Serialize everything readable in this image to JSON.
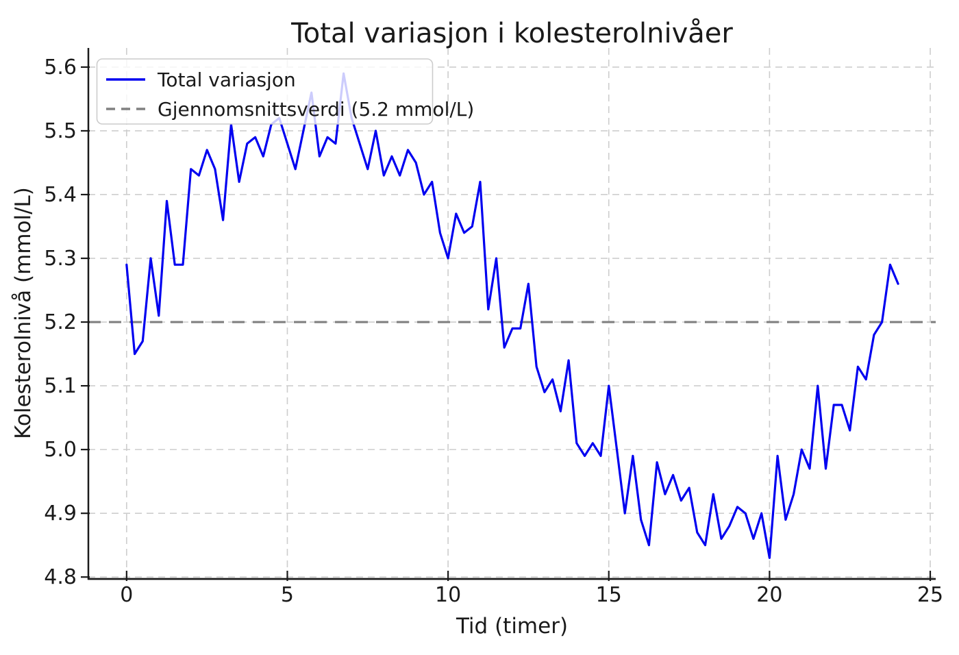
{
  "chart_data": {
    "type": "line",
    "title": "Total variasjon i kolesterolnivåer",
    "xlabel": "Tid (timer)",
    "ylabel": "Kolesterolnivå (mmol/L)",
    "xlim": [
      -1.19,
      25.17
    ],
    "ylim": [
      4.797,
      5.63
    ],
    "xticks": [
      0,
      5,
      10,
      15,
      20,
      25
    ],
    "xtick_labels": [
      "0",
      "5",
      "10",
      "15",
      "20",
      "25"
    ],
    "yticks": [
      4.8,
      4.9,
      5.0,
      5.1,
      5.2,
      5.3,
      5.4,
      5.5,
      5.6
    ],
    "ytick_labels": [
      "4.8",
      "4.9",
      "5.0",
      "5.1",
      "5.2",
      "5.3",
      "5.4",
      "5.5",
      "5.6"
    ],
    "grid": true,
    "x": {
      "start": 0,
      "step": 0.25,
      "count": 97,
      "unit": "timer"
    },
    "series": [
      {
        "name": "Total variasjon",
        "color": "#0000f0",
        "linestyle": "solid",
        "linewidth": 3.2,
        "values": [
          5.29,
          5.15,
          5.17,
          5.3,
          5.21,
          5.39,
          5.29,
          5.29,
          5.44,
          5.43,
          5.47,
          5.44,
          5.36,
          5.51,
          5.42,
          5.48,
          5.49,
          5.46,
          5.51,
          5.52,
          5.48,
          5.44,
          5.5,
          5.56,
          5.46,
          5.49,
          5.48,
          5.59,
          5.52,
          5.48,
          5.44,
          5.5,
          5.43,
          5.46,
          5.43,
          5.47,
          5.45,
          5.4,
          5.42,
          5.34,
          5.3,
          5.37,
          5.34,
          5.35,
          5.42,
          5.22,
          5.3,
          5.16,
          5.19,
          5.19,
          5.26,
          5.13,
          5.09,
          5.11,
          5.06,
          5.14,
          5.01,
          4.99,
          5.01,
          4.99,
          5.1,
          5.0,
          4.9,
          4.99,
          4.89,
          4.85,
          4.98,
          4.93,
          4.96,
          4.92,
          4.94,
          4.87,
          4.85,
          4.93,
          4.86,
          4.88,
          4.91,
          4.9,
          4.86,
          4.9,
          4.83,
          4.99,
          4.89,
          4.93,
          5.0,
          4.97,
          5.1,
          4.97,
          5.07,
          5.07,
          5.03,
          5.13,
          5.11,
          5.18,
          5.2,
          5.29,
          5.26
        ]
      }
    ],
    "reference_lines": [
      {
        "name": "Gjennomsnittsverdi (5.2 mmol/L)",
        "value": 5.2,
        "color": "#808080",
        "linestyle": "dashed",
        "linewidth": 3.2
      }
    ],
    "legend": {
      "position": "upper left",
      "entries": [
        {
          "label": "Total variasjon",
          "color": "#0000f0",
          "dashed": false
        },
        {
          "label": "Gjennomsnittsverdi (5.2 mmol/L)",
          "color": "#808080",
          "dashed": true
        }
      ]
    },
    "colors": {
      "grid": "#cdcdcd",
      "spine": "#1a1a1a",
      "text": "#1a1a1a",
      "background": "#ffffff"
    }
  }
}
